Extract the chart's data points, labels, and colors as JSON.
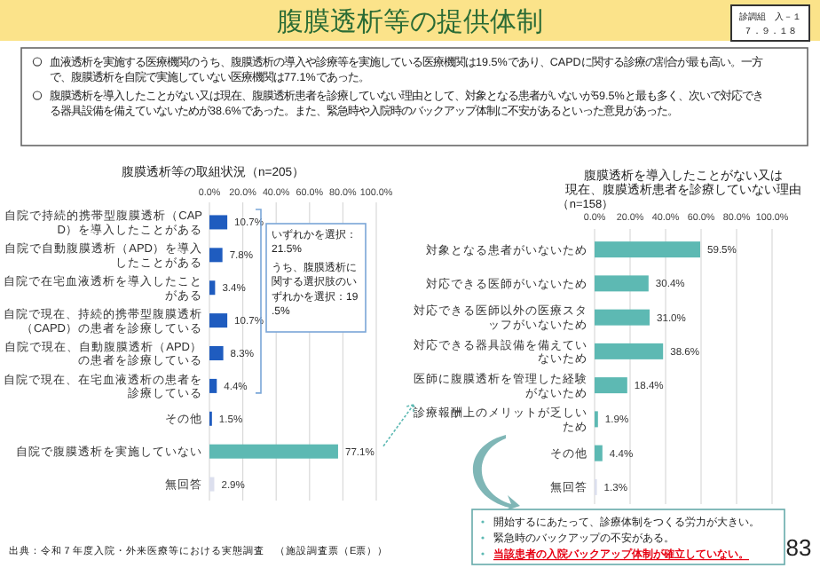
{
  "chart_data": [
    {
      "type": "other",
      "title": "腹膜透析等の提供体制",
      "annotations": [
        "診調組　入－１",
        "７．９．１８",
        "血液透析を実施する医療機関のうち、腹膜透析の導入や診療等を実施している医療機関は19.5%であり、CAPDに関する診療の割合が最も高い。一方で、腹膜透析を自院で実施していない医療機関は77.1%であった。",
        "腹膜透析を導入したことがない又は現在、腹膜透析患者を診療していない理由として、対象となる患者がいないが59.5%と最も多く、次いで対応できる器具設備を備えていないためが38.6%であった。また、緊急時や入院時のバックアップ体制に不安があるといった意見があった。",
        "出典：令和７年度入院・外来医療等における実態調査　（施設調査票（E票））",
        "83"
      ]
    },
    {
      "type": "bar",
      "orientation": "horizontal",
      "title": "腹膜透析等の取組状況（n=205）",
      "categories": [
        "自院で持続的携帯型腹膜透析（CAPD）を導入したことがある",
        "自院で自動腹膜透析（APD）を導入したことがある",
        "自院で在宅血液透析を導入したことがある",
        "自院で現在、持続的携帯型腹膜透析（CAPD）の患者を診療している",
        "自院で現在、自動腹膜透析（APD）の患者を診療している",
        "自院で現在、在宅血液透析の患者を診療している",
        "その他",
        "自院で腹膜透析を実施していない",
        "無回答"
      ],
      "values": [
        10.7,
        7.8,
        3.4,
        10.7,
        8.3,
        4.4,
        1.5,
        77.1,
        2.9
      ],
      "colors": [
        "#1f5cbf",
        "#1f5cbf",
        "#1f5cbf",
        "#1f5cbf",
        "#1f5cbf",
        "#1f5cbf",
        "#1f5cbf",
        "#5db9b3",
        "#dcdfee"
      ],
      "value_labels": [
        "10.7%",
        "7.8%",
        "3.4%",
        "10.7%",
        "8.3%",
        "4.4%",
        "1.5%",
        "77.1%",
        "2.9%"
      ],
      "xlim": [
        0,
        100
      ],
      "xticks": [
        {
          "value": 0,
          "label": "0.0%"
        },
        {
          "value": 20,
          "label": "20.0%"
        },
        {
          "value": 40,
          "label": "40.0%"
        },
        {
          "value": 60,
          "label": "60.0%"
        },
        {
          "value": 80,
          "label": "80.0%"
        },
        {
          "value": 100,
          "label": "100.0%"
        }
      ],
      "grid": "x",
      "annotations": [
        "いずれかを選択：21.5%",
        "うち、腹膜透析に関する選択肢のいずれかを選択：19.5%"
      ]
    },
    {
      "type": "bar",
      "orientation": "horizontal",
      "title": "腹膜透析を導入したことがない又は現在、腹膜透析患者を診療していない理由",
      "subtitle": "（n=158）",
      "categories": [
        "対象となる患者がいないため",
        "対応できる医師がいないため",
        "対応できる医師以外の医療スタッフがいないため",
        "対応できる器具設備を備えていないため",
        "医師に腹膜透析を管理した経験がないため",
        "診療報酬上のメリットが乏しいため",
        "その他",
        "無回答"
      ],
      "values": [
        59.5,
        30.4,
        31.0,
        38.6,
        18.4,
        1.9,
        4.4,
        1.3
      ],
      "colors": [
        "#5db9b3",
        "#5db9b3",
        "#5db9b3",
        "#5db9b3",
        "#5db9b3",
        "#5db9b3",
        "#5db9b3",
        "#dcdfee"
      ],
      "value_labels": [
        "59.5%",
        "30.4%",
        "31.0%",
        "38.6%",
        "18.4%",
        "1.9%",
        "4.4%",
        "1.3%"
      ],
      "xlim": [
        0,
        100
      ],
      "xticks": [
        {
          "value": 0,
          "label": "0.0%"
        },
        {
          "value": 20,
          "label": "20.0%"
        },
        {
          "value": 40,
          "label": "40.0%"
        },
        {
          "value": 60,
          "label": "60.0%"
        },
        {
          "value": 80,
          "label": "80.0%"
        },
        {
          "value": 100,
          "label": "100.0%"
        }
      ],
      "grid": "x",
      "annotations": [
        "開始するにあたって、診療体制をつくる労力が大きい。",
        "緊急時のバックアップの不安がある。",
        "当該患者の入院バックアップ体制が確立していない。"
      ]
    }
  ]
}
